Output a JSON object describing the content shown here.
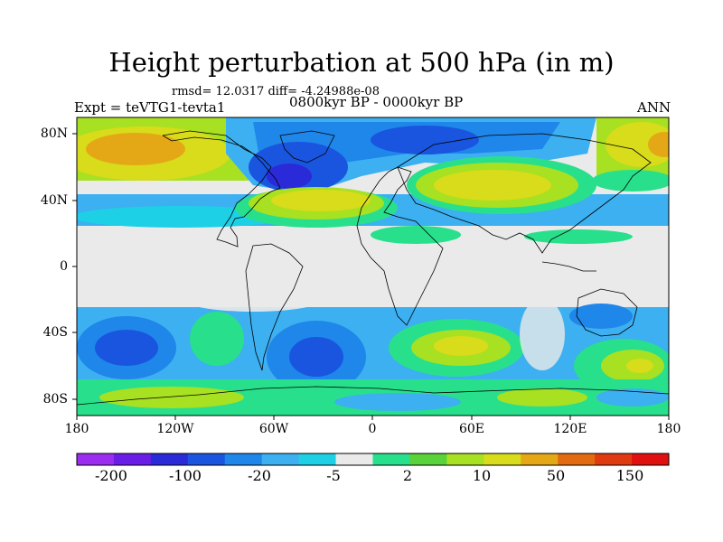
{
  "title": "Height perturbation at 500 hPa (in m)",
  "stats": "rmsd= 12.0317 diff= -4.24988e-08",
  "expt": "Expt = teVTG1-tevta1",
  "period": "0800kyr BP - 0000kyr BP",
  "season": "ANN",
  "lat_labels": [
    "80N",
    "40N",
    "0",
    "40S",
    "80S"
  ],
  "lon_labels": [
    "180",
    "120W",
    "60W",
    "0",
    "60E",
    "120E",
    "180"
  ],
  "colorbar": {
    "colors": [
      "#9a2df0",
      "#6a1de6",
      "#2a2ad8",
      "#1a55e0",
      "#1f86ea",
      "#3cb0f0",
      "#1ed0e6",
      "#eaeaea",
      "#28e08c",
      "#5ad23a",
      "#a8e022",
      "#d8dc1a",
      "#e4a816",
      "#e26a10",
      "#e03a10",
      "#e01010"
    ],
    "labels": [
      "-200",
      "-100",
      "-20",
      "-5",
      "2",
      "10",
      "50",
      "150"
    ]
  }
}
